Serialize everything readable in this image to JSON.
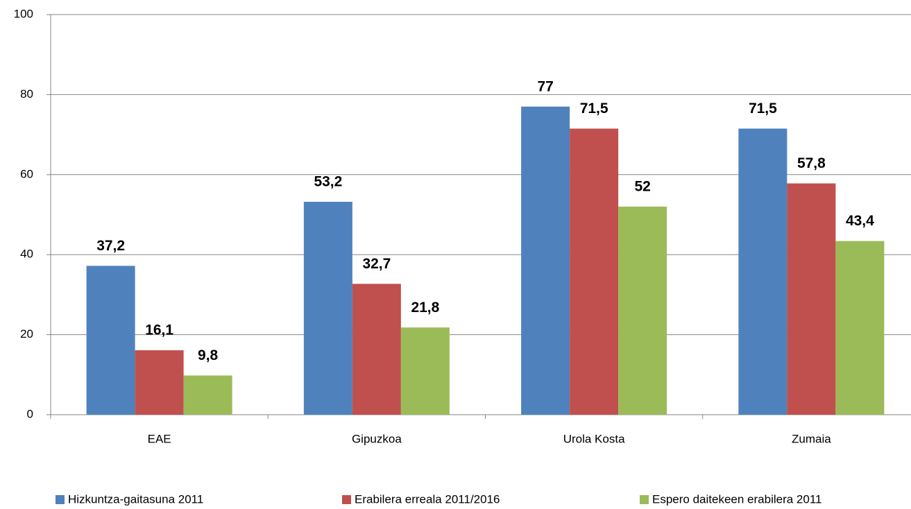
{
  "chart_data": {
    "type": "bar",
    "categories": [
      "EAE",
      "Gipuzkoa",
      "Urola Kosta",
      "Zumaia"
    ],
    "series": [
      {
        "name": "Hizkuntza-gaitasuna 2011",
        "color": "#4f81bd",
        "label_color": "#000000",
        "values": [
          37.2,
          53.2,
          77,
          71.5
        ],
        "value_labels": [
          "37,2",
          "53,2",
          "77",
          "71,5"
        ]
      },
      {
        "name": "Erabilera erreala 2011/2016",
        "color": "#c0504d",
        "label_color": "#984807",
        "values": [
          16.1,
          32.7,
          71.5,
          57.8
        ],
        "value_labels": [
          "16,1",
          "32,7",
          "71,5",
          "57,8"
        ]
      },
      {
        "name": "Espero daitekeen erabilera 2011",
        "color": "#9bbb59",
        "label_color": "#4f6228",
        "values": [
          9.8,
          21.8,
          52,
          43.4
        ],
        "value_labels": [
          "9,8",
          "21,8",
          "52",
          "43,4"
        ]
      }
    ],
    "ylim": [
      0,
      100
    ],
    "yticks": [
      0,
      20,
      40,
      60,
      80,
      100
    ],
    "grid": true,
    "legend": "bottom"
  }
}
